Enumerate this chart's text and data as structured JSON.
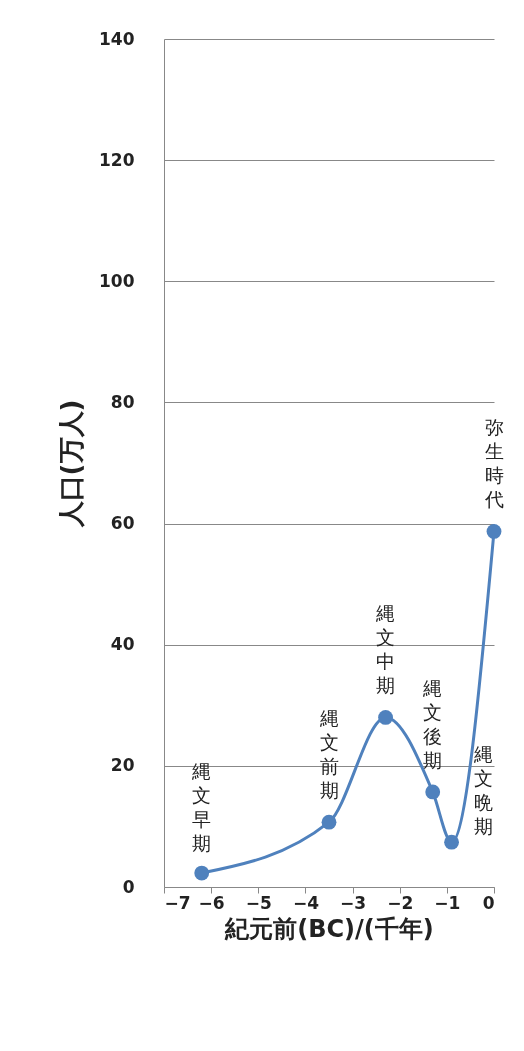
{
  "chart_data": {
    "type": "line",
    "xlabel": "紀元前(BC)/(千年)",
    "ylabel": "人口(万人)",
    "xlim": [
      -7,
      0
    ],
    "xticks": [
      -7,
      -6,
      -5,
      -4,
      -3,
      -2,
      -1,
      0
    ],
    "ylim": [
      0,
      140
    ],
    "yticks": [
      0,
      20,
      40,
      60,
      80,
      100,
      120,
      140
    ],
    "grid": "y",
    "marker": "circle",
    "line_style": "solid",
    "series": [
      {
        "color": "#4f81bd",
        "x": [
          -6.2,
          -3.5,
          -2.3,
          -1.3,
          -0.9,
          0
        ],
        "values": [
          2.3,
          10.7,
          28,
          15.7,
          7.4,
          58.7
        ]
      }
    ],
    "annotations": [
      {
        "text": "縄文早期",
        "x": -6.2,
        "y": 2.3
      },
      {
        "text": "縄文前期",
        "x": -3.5,
        "y": 10.7
      },
      {
        "text": "縄文中期",
        "x": -2.3,
        "y": 28
      },
      {
        "text": "縄文後期",
        "x": -1.3,
        "y": 15.7
      },
      {
        "text": "縄文晩期",
        "x": -0.9,
        "y": 7.4
      },
      {
        "text": "弥生時代",
        "x": 0,
        "y": 58.7
      }
    ]
  }
}
